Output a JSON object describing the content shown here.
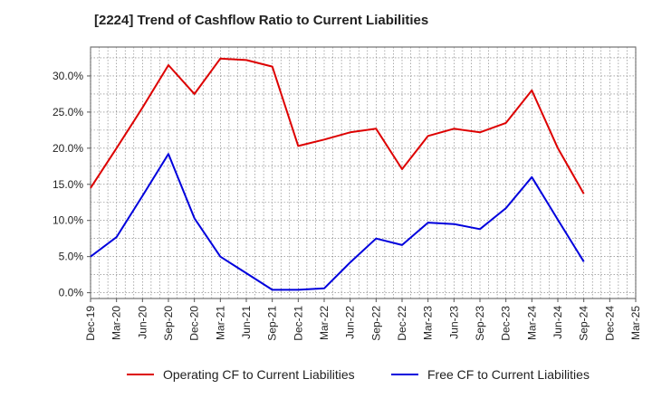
{
  "chart_data": {
    "type": "line",
    "title": "[2224]  Trend of Cashflow Ratio to Current Liabilities",
    "xlabel": "",
    "ylabel": "",
    "x_ticks": [
      "Dec-19",
      "Mar-20",
      "Jun-20",
      "Sep-20",
      "Dec-20",
      "Mar-21",
      "Jun-21",
      "Sep-21",
      "Dec-21",
      "Mar-22",
      "Jun-22",
      "Sep-22",
      "Dec-22",
      "Mar-23",
      "Jun-23",
      "Sep-23",
      "Dec-23",
      "Mar-24",
      "Jun-24",
      "Sep-24",
      "Dec-24",
      "Mar-25"
    ],
    "y_ticks": [
      "0.0%",
      "5.0%",
      "10.0%",
      "15.0%",
      "20.0%",
      "25.0%",
      "30.0%"
    ],
    "ylim": [
      -0.8,
      34
    ],
    "grid": true,
    "legend_position": "bottom",
    "series": [
      {
        "name": "Operating CF to Current Liabilities",
        "color": "#dd0000",
        "x": [
          "Dec-19",
          "Mar-20",
          "Jun-20",
          "Sep-20",
          "Dec-20",
          "Mar-21",
          "Jun-21",
          "Sep-21",
          "Dec-21",
          "Mar-22",
          "Jun-22",
          "Sep-22",
          "Dec-22",
          "Mar-23",
          "Jun-23",
          "Sep-23",
          "Dec-23",
          "Mar-24",
          "Jun-24",
          "Sep-24"
        ],
        "values": [
          14.5,
          20.0,
          25.6,
          31.5,
          27.5,
          32.4,
          32.2,
          31.3,
          20.3,
          21.2,
          22.2,
          22.7,
          17.1,
          21.7,
          22.7,
          22.2,
          23.5,
          28.0,
          20.0,
          13.7
        ]
      },
      {
        "name": "Free CF to Current Liabilities",
        "color": "#0000dd",
        "x": [
          "Dec-19",
          "Mar-20",
          "Jun-20",
          "Sep-20",
          "Dec-20",
          "Mar-21",
          "Jun-21",
          "Sep-21",
          "Dec-21",
          "Mar-22",
          "Jun-22",
          "Sep-22",
          "Dec-22",
          "Mar-23",
          "Jun-23",
          "Sep-23",
          "Dec-23",
          "Mar-24",
          "Jun-24",
          "Sep-24"
        ],
        "values": [
          5.0,
          7.7,
          13.4,
          19.2,
          10.3,
          5.0,
          2.7,
          0.4,
          0.4,
          0.6,
          4.2,
          7.5,
          6.6,
          9.7,
          9.5,
          8.8,
          11.7,
          16.0,
          10.1,
          4.3
        ]
      }
    ]
  }
}
